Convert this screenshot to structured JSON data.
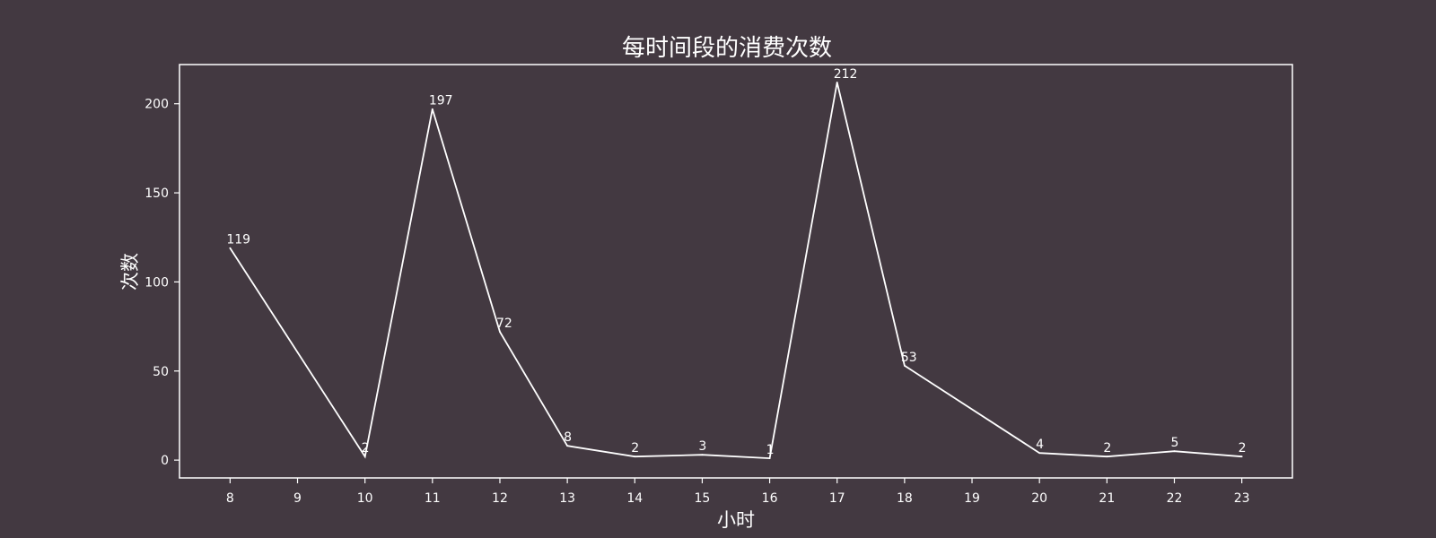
{
  "chart_data": {
    "type": "line",
    "title": "每时间段的消费次数",
    "xlabel": "小时",
    "ylabel": "次数",
    "x": [
      8,
      10,
      11,
      12,
      13,
      14,
      15,
      16,
      17,
      18,
      20,
      21,
      22,
      23
    ],
    "y": [
      119,
      2,
      197,
      72,
      8,
      2,
      3,
      1,
      212,
      53,
      4,
      2,
      5,
      2
    ],
    "xticks": [
      "8",
      "9",
      "10",
      "11",
      "12",
      "13",
      "14",
      "15",
      "16",
      "17",
      "18",
      "19",
      "20",
      "21",
      "22",
      "23"
    ],
    "yticks": [
      "0",
      "50",
      "100",
      "150",
      "200"
    ],
    "xlim": [
      7.25,
      23.75
    ],
    "ylim": [
      -10,
      222
    ],
    "grid": false,
    "legend": "none",
    "colors": {
      "background": "#433941",
      "line": "#ffffff",
      "text": "#ffffff"
    }
  }
}
